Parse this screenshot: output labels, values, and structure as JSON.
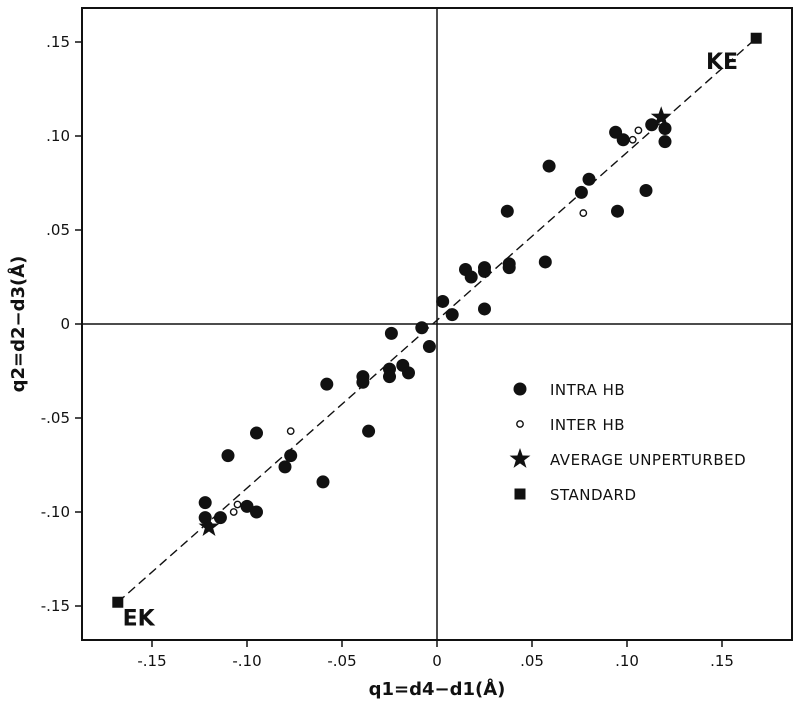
{
  "chart_data": {
    "type": "scatter",
    "xlabel": "q1=d4−d1(Å)",
    "ylabel": "q2=d2−d3(Å)",
    "xlim": [
      -0.19,
      0.19
    ],
    "ylim": [
      -0.17,
      0.17
    ],
    "x_ticks": [
      {
        "value": -0.15,
        "label": "-.15"
      },
      {
        "value": -0.1,
        "label": "-.10"
      },
      {
        "value": -0.05,
        "label": "-.05"
      },
      {
        "value": 0,
        "label": "0"
      },
      {
        "value": 0.05,
        "label": ".05"
      },
      {
        "value": 0.1,
        "label": ".10"
      },
      {
        "value": 0.15,
        "label": ".15"
      }
    ],
    "y_ticks": [
      {
        "value": 0.15,
        "label": ".15"
      },
      {
        "value": 0.1,
        "label": ".10"
      },
      {
        "value": 0.05,
        "label": ".05"
      },
      {
        "value": 0,
        "label": "0"
      },
      {
        "value": -0.05,
        "label": "-.05"
      },
      {
        "value": -0.1,
        "label": "-.10"
      },
      {
        "value": -0.15,
        "label": "-.15"
      }
    ],
    "grid": false,
    "legend_position": "middle-right",
    "fit_line": {
      "x": [
        -0.168,
        0.168
      ],
      "y": [
        -0.148,
        0.152
      ],
      "style": "dashed"
    },
    "annotations": [
      {
        "text": "KE",
        "x": 0.15,
        "y": 0.14
      },
      {
        "text": "EK",
        "x": -0.157,
        "y": -0.156
      }
    ],
    "series": [
      {
        "name": "INTRA HB",
        "marker": "filled-circle",
        "points": [
          [
            -0.122,
            -0.095
          ],
          [
            -0.122,
            -0.103
          ],
          [
            -0.114,
            -0.103
          ],
          [
            -0.11,
            -0.07
          ],
          [
            -0.1,
            -0.097
          ],
          [
            -0.095,
            -0.1
          ],
          [
            -0.095,
            -0.058
          ],
          [
            -0.08,
            -0.076
          ],
          [
            -0.077,
            -0.07
          ],
          [
            -0.06,
            -0.084
          ],
          [
            -0.058,
            -0.032
          ],
          [
            -0.039,
            -0.028
          ],
          [
            -0.039,
            -0.031
          ],
          [
            -0.036,
            -0.057
          ],
          [
            -0.025,
            -0.024
          ],
          [
            -0.025,
            -0.028
          ],
          [
            -0.024,
            -0.005
          ],
          [
            -0.018,
            -0.022
          ],
          [
            -0.015,
            -0.026
          ],
          [
            -0.008,
            -0.002
          ],
          [
            -0.004,
            -0.012
          ],
          [
            0.003,
            0.012
          ],
          [
            0.008,
            0.005
          ],
          [
            0.015,
            0.029
          ],
          [
            0.018,
            0.025
          ],
          [
            0.025,
            0.03
          ],
          [
            0.025,
            0.028
          ],
          [
            0.025,
            0.008
          ],
          [
            0.037,
            0.06
          ],
          [
            0.038,
            0.032
          ],
          [
            0.038,
            0.03
          ],
          [
            0.057,
            0.033
          ],
          [
            0.059,
            0.084
          ],
          [
            0.076,
            0.07
          ],
          [
            0.08,
            0.077
          ],
          [
            0.094,
            0.102
          ],
          [
            0.095,
            0.06
          ],
          [
            0.098,
            0.098
          ],
          [
            0.11,
            0.071
          ],
          [
            0.113,
            0.106
          ],
          [
            0.12,
            0.104
          ],
          [
            0.12,
            0.097
          ]
        ]
      },
      {
        "name": "INTER HB",
        "marker": "open-circle",
        "points": [
          [
            -0.12,
            -0.107
          ],
          [
            -0.107,
            -0.1
          ],
          [
            -0.105,
            -0.096
          ],
          [
            -0.077,
            -0.057
          ],
          [
            0.077,
            0.059
          ],
          [
            0.103,
            0.098
          ],
          [
            0.106,
            0.103
          ]
        ]
      },
      {
        "name": "AVERAGE UNPERTURBED",
        "marker": "star",
        "points": [
          [
            -0.12,
            -0.108
          ],
          [
            0.118,
            0.11
          ]
        ]
      },
      {
        "name": "STANDARD",
        "marker": "filled-square",
        "points": [
          [
            -0.168,
            -0.148
          ],
          [
            0.168,
            0.152
          ]
        ]
      }
    ]
  }
}
